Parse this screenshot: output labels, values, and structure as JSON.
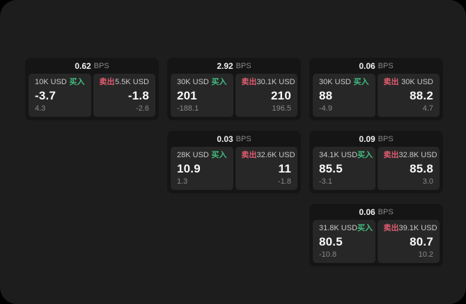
{
  "labels": {
    "buy": "买入",
    "sell": "卖出",
    "bps_unit": "BPS"
  },
  "colors": {
    "page_outside": "#000000",
    "window_bg": "#1d1d1d",
    "card_bg": "#151515",
    "panel_bg": "#272727",
    "buy_green": "#42bd80",
    "sell_red": "#e05c70",
    "price_text": "#fafafa",
    "muted_text": "#8a8a8a"
  },
  "cards": [
    {
      "bps": "0.62",
      "buy": {
        "amount": "10K USD",
        "price": "-3.7",
        "delta": "4.3"
      },
      "sell": {
        "amount": "5.5K USD",
        "price": "-1.8",
        "delta": "-2.6"
      }
    },
    {
      "bps": "2.92",
      "buy": {
        "amount": "30K USD",
        "price": "201",
        "delta": "-188.1"
      },
      "sell": {
        "amount": "30.1K USD",
        "price": "210",
        "delta": "196.5"
      }
    },
    {
      "bps": "0.06",
      "buy": {
        "amount": "30K USD",
        "price": "88",
        "delta": "-4.9"
      },
      "sell": {
        "amount": "30K USD",
        "price": "88.2",
        "delta": "4.7"
      }
    },
    {
      "bps": "0.03",
      "buy": {
        "amount": "28K USD",
        "price": "10.9",
        "delta": "1.3"
      },
      "sell": {
        "amount": "32.6K USD",
        "price": "11",
        "delta": "-1.8"
      }
    },
    {
      "bps": "0.09",
      "buy": {
        "amount": "34.1K USD",
        "price": "85.5",
        "delta": "-3.1"
      },
      "sell": {
        "amount": "32.8K USD",
        "price": "85.8",
        "delta": "3.0"
      }
    },
    {
      "bps": "0.06",
      "buy": {
        "amount": "31.8K USD",
        "price": "80.5",
        "delta": "-10.8"
      },
      "sell": {
        "amount": "39.1K USD",
        "price": "80.7",
        "delta": "10.2"
      }
    }
  ]
}
